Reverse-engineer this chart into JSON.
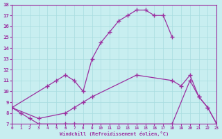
{
  "line1": {
    "x": [
      0,
      4,
      5,
      6,
      7,
      8,
      9,
      10,
      11,
      12,
      13,
      14,
      15,
      16,
      17,
      18
    ],
    "y": [
      8.5,
      10.5,
      11.0,
      11.5,
      11.0,
      10.0,
      13.0,
      14.5,
      15.5,
      16.5,
      17.0,
      17.5,
      17.5,
      17.0,
      17.0,
      15.0
    ]
  },
  "line2": {
    "x": [
      0,
      3,
      6,
      7,
      8,
      9,
      14,
      18,
      19,
      20,
      21,
      22,
      23
    ],
    "y": [
      8.5,
      7.5,
      8.0,
      8.5,
      9.0,
      9.5,
      11.5,
      11.0,
      10.5,
      11.5,
      9.5,
      8.5,
      7.0
    ]
  },
  "line3": {
    "x": [
      0,
      1,
      2,
      3,
      6,
      7,
      18,
      20,
      21,
      22,
      23
    ],
    "y": [
      8.5,
      8.0,
      7.5,
      7.0,
      7.0,
      7.0,
      7.0,
      11.0,
      9.5,
      8.5,
      7.0
    ]
  },
  "color": "#9B30A0",
  "bg_color": "#C8EEF0",
  "grid_color": "#A8DCE0",
  "xlabel": "Windchill (Refroidissement éolien,°C)",
  "xlim": [
    0,
    23
  ],
  "ylim": [
    7,
    18
  ],
  "yticks": [
    7,
    8,
    9,
    10,
    11,
    12,
    13,
    14,
    15,
    16,
    17,
    18
  ],
  "xticks": [
    0,
    1,
    2,
    3,
    4,
    5,
    6,
    7,
    8,
    9,
    10,
    11,
    12,
    13,
    14,
    15,
    16,
    17,
    18,
    19,
    20,
    21,
    22,
    23
  ]
}
